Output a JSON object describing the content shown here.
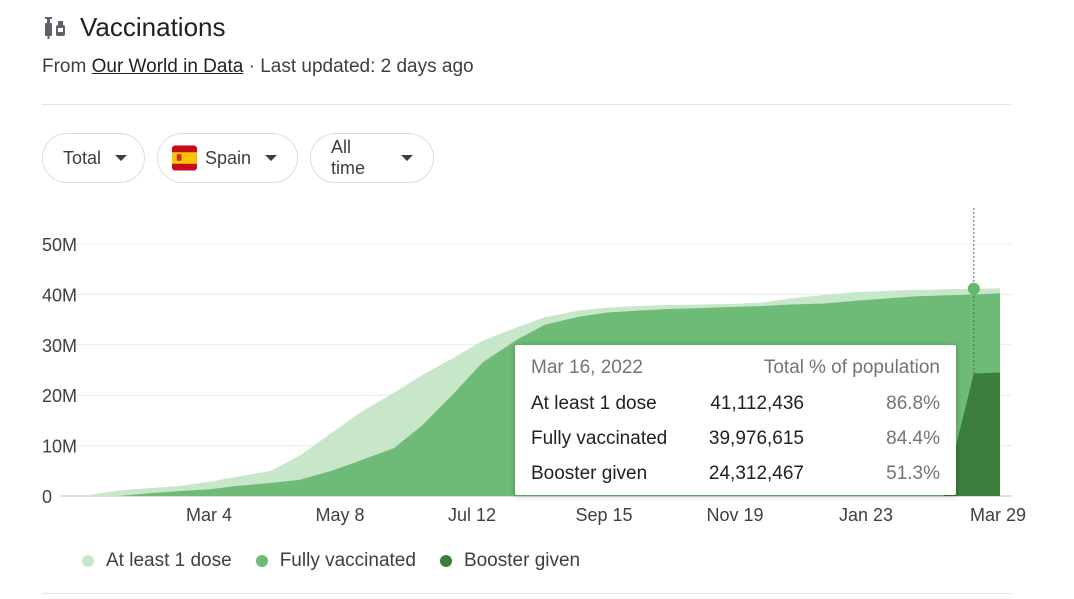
{
  "header": {
    "title": "Vaccinations",
    "source_prefix": "From",
    "source_link": "Our World in Data",
    "updated": "· Last updated: 2 days ago",
    "icon": "vaccine-syringe-icon"
  },
  "filters": {
    "metric": "Total",
    "country": "Spain",
    "range": "All time"
  },
  "colors": {
    "at_least_1_dose": "#c8e6c9",
    "fully_vaccinated": "#6dbb76",
    "booster_given": "#3b7f3d",
    "highlight": "#64b866"
  },
  "chart_data": {
    "type": "area",
    "x_tick_labels": [
      "Mar 4",
      "May 8",
      "Jul 12",
      "Sep 15",
      "Nov 19",
      "Jan 23",
      "Mar 29"
    ],
    "y_tick_labels": [
      "0",
      "10M",
      "20M",
      "30M",
      "40M",
      "50M"
    ],
    "ylim": [
      0,
      50000000
    ],
    "grid": true,
    "legend_position": "bottom",
    "x_dates": [
      "2021-01-01",
      "2021-01-15",
      "2021-02-01",
      "2021-02-15",
      "2021-03-01",
      "2021-03-15",
      "2021-04-01",
      "2021-04-15",
      "2021-05-01",
      "2021-05-15",
      "2021-06-01",
      "2021-06-15",
      "2021-07-01",
      "2021-07-15",
      "2021-08-01",
      "2021-08-15",
      "2021-09-01",
      "2021-09-15",
      "2021-10-01",
      "2021-10-15",
      "2021-11-01",
      "2021-11-15",
      "2021-12-01",
      "2021-12-15",
      "2022-01-01",
      "2022-01-15",
      "2022-02-01",
      "2022-02-15",
      "2022-03-01",
      "2022-03-16",
      "2022-03-29"
    ],
    "series": [
      {
        "name": "At least 1 dose",
        "values": [
          200000,
          1100000,
          1600000,
          2000000,
          2800000,
          3800000,
          5000000,
          8000000,
          12500000,
          16500000,
          20500000,
          24000000,
          27500000,
          30800000,
          33500000,
          35500000,
          36800000,
          37400000,
          37700000,
          37900000,
          38000000,
          38100000,
          38400000,
          39200000,
          39900000,
          40400000,
          40700000,
          40900000,
          41000000,
          41112436,
          41200000
        ]
      },
      {
        "name": "Fully vaccinated",
        "values": [
          0,
          0,
          600000,
          1000000,
          1300000,
          2000000,
          2600000,
          3200000,
          5000000,
          7000000,
          9500000,
          14000000,
          20500000,
          26500000,
          31000000,
          34000000,
          35600000,
          36400000,
          36800000,
          37100000,
          37300000,
          37500000,
          37700000,
          38000000,
          38200000,
          38700000,
          39200000,
          39600000,
          39800000,
          39976615,
          40200000
        ]
      },
      {
        "name": "Booster given",
        "values": [
          0,
          0,
          0,
          0,
          0,
          0,
          0,
          0,
          0,
          0,
          0,
          0,
          0,
          0,
          0,
          0,
          0,
          0,
          0,
          0,
          0,
          0,
          0,
          0,
          0,
          0,
          0,
          0,
          0,
          24312467,
          24500000
        ]
      }
    ],
    "highlighted_point": {
      "date_label": "Mar 16, 2022",
      "columns": [
        "Total",
        "% of population"
      ],
      "rows": [
        {
          "label": "At least 1 dose",
          "total": "41,112,436",
          "percent": "86.8%"
        },
        {
          "label": "Fully vaccinated",
          "total": "39,976,615",
          "percent": "84.4%"
        },
        {
          "label": "Booster given",
          "total": "24,312,467",
          "percent": "51.3%"
        }
      ]
    }
  },
  "legend": [
    {
      "label": "At least 1 dose"
    },
    {
      "label": "Fully vaccinated"
    },
    {
      "label": "Booster given"
    }
  ]
}
